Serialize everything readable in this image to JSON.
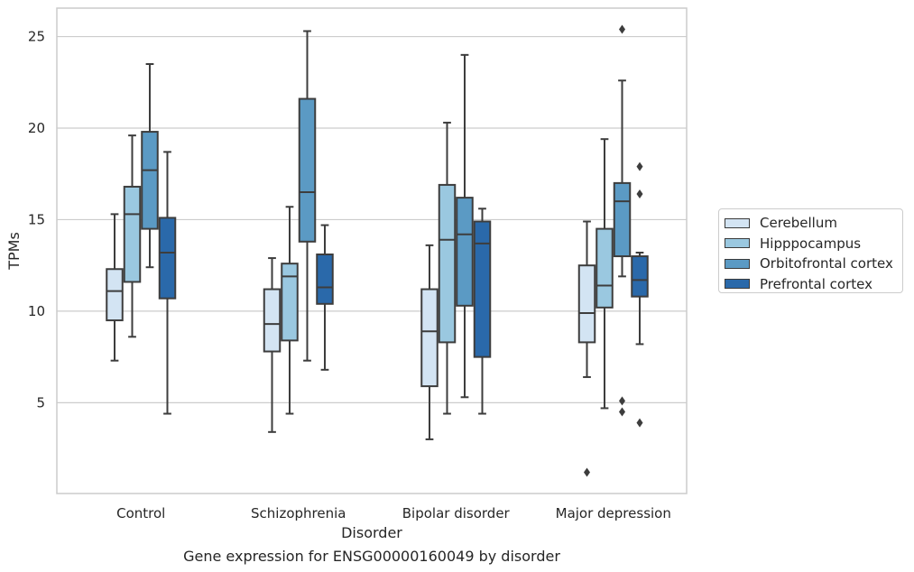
{
  "chart_data": {
    "type": "boxplot",
    "title": "Gene expression for ENSG00000160049 by disorder",
    "xlabel": "Disorder",
    "ylabel": "TPMs",
    "ylim": [
      0,
      26.5
    ],
    "yticks": [
      5,
      10,
      15,
      20,
      25
    ],
    "grid": true,
    "legend_position": "right",
    "categories": [
      "Control",
      "Schizophrenia",
      "Bipolar disorder",
      "Major depression"
    ],
    "series": [
      {
        "name": "Cerebellum",
        "color": "#d3e4f3",
        "boxes": [
          {
            "whisker_low": 7.3,
            "q1": 9.5,
            "median": 11.1,
            "q3": 12.3,
            "whisker_high": 15.3,
            "outliers": []
          },
          {
            "whisker_low": 3.4,
            "q1": 7.8,
            "median": 9.3,
            "q3": 11.2,
            "whisker_high": 12.9,
            "outliers": []
          },
          {
            "whisker_low": 3.0,
            "q1": 5.9,
            "median": 8.9,
            "q3": 11.2,
            "whisker_high": 13.6,
            "outliers": []
          },
          {
            "whisker_low": 6.4,
            "q1": 8.3,
            "median": 9.9,
            "q3": 12.5,
            "whisker_high": 14.9,
            "outliers": [
              1.2
            ]
          }
        ]
      },
      {
        "name": "Hipppocampus",
        "color": "#9ac8e0",
        "boxes": [
          {
            "whisker_low": 8.6,
            "q1": 11.6,
            "median": 15.3,
            "q3": 16.8,
            "whisker_high": 19.6,
            "outliers": []
          },
          {
            "whisker_low": 4.4,
            "q1": 8.4,
            "median": 11.9,
            "q3": 12.6,
            "whisker_high": 15.7,
            "outliers": []
          },
          {
            "whisker_low": 4.4,
            "q1": 8.3,
            "median": 13.9,
            "q3": 16.9,
            "whisker_high": 20.3,
            "outliers": []
          },
          {
            "whisker_low": 4.7,
            "q1": 10.2,
            "median": 11.4,
            "q3": 14.5,
            "whisker_high": 19.4,
            "outliers": []
          }
        ]
      },
      {
        "name": "Orbitofrontal cortex",
        "color": "#5b9ac4",
        "boxes": [
          {
            "whisker_low": 12.4,
            "q1": 14.5,
            "median": 17.7,
            "q3": 19.8,
            "whisker_high": 23.5,
            "outliers": []
          },
          {
            "whisker_low": 7.3,
            "q1": 13.8,
            "median": 16.5,
            "q3": 21.6,
            "whisker_high": 25.3,
            "outliers": []
          },
          {
            "whisker_low": 5.3,
            "q1": 10.3,
            "median": 14.2,
            "q3": 16.2,
            "whisker_high": 24.0,
            "outliers": []
          },
          {
            "whisker_low": 11.9,
            "q1": 13.0,
            "median": 16.0,
            "q3": 17.0,
            "whisker_high": 22.6,
            "outliers": [
              25.4,
              5.1,
              4.5
            ]
          }
        ]
      },
      {
        "name": "Prefrontal cortex",
        "color": "#2a69aa",
        "boxes": [
          {
            "whisker_low": 4.4,
            "q1": 10.7,
            "median": 13.2,
            "q3": 15.1,
            "whisker_high": 18.7,
            "outliers": []
          },
          {
            "whisker_low": 6.8,
            "q1": 10.4,
            "median": 11.3,
            "q3": 13.1,
            "whisker_high": 14.7,
            "outliers": []
          },
          {
            "whisker_low": 4.4,
            "q1": 7.5,
            "median": 13.7,
            "q3": 14.9,
            "whisker_high": 15.6,
            "outliers": []
          },
          {
            "whisker_low": 8.2,
            "q1": 10.8,
            "median": 11.7,
            "q3": 13.0,
            "whisker_high": 13.2,
            "outliers": [
              17.9,
              16.4,
              3.9
            ]
          }
        ]
      }
    ]
  }
}
